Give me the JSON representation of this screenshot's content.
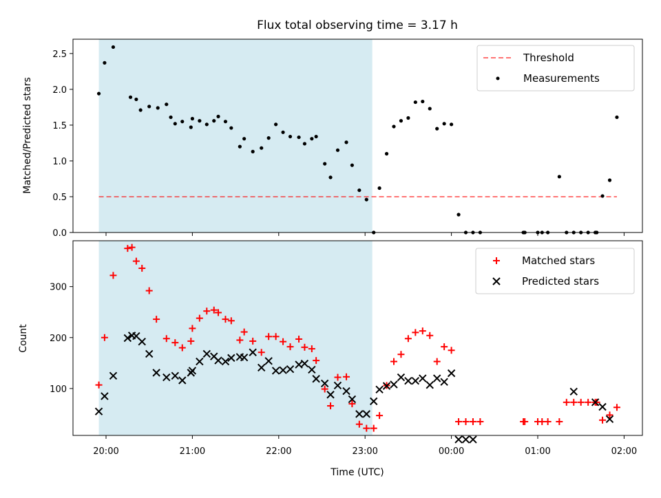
{
  "title": "Flux total observing time = 3.17 h",
  "colors": {
    "shade": "#add8e6",
    "threshold": "#ff0000",
    "measurement": "#000000",
    "matched": "#ff0000",
    "predicted": "#000000"
  },
  "chart_data": [
    {
      "type": "scatter",
      "ylabel": "Matched/Predicted stars",
      "ylim": [
        0,
        2.7
      ],
      "yticks": [
        0.0,
        0.5,
        1.0,
        1.5,
        2.0,
        2.5
      ],
      "ytick_labels": [
        "0.0",
        "0.5",
        "1.0",
        "1.5",
        "2.0",
        "2.5"
      ],
      "shaded_region": {
        "x_start": "19:55",
        "x_end": "23:05"
      },
      "threshold": {
        "value": 0.5,
        "x_start": "19:55",
        "x_end": "01:55"
      },
      "legend": [
        "Threshold",
        "Measurements"
      ],
      "legend_position": "top-right",
      "series": [
        {
          "name": "Measurements",
          "x": [
            "19:55",
            "19:59",
            "20:05",
            "20:17",
            "20:21",
            "20:24",
            "20:30",
            "20:36",
            "20:42",
            "20:45",
            "20:48",
            "20:53",
            "20:59",
            "21:00",
            "21:05",
            "21:10",
            "21:15",
            "21:18",
            "21:23",
            "21:27",
            "21:33",
            "21:36",
            "21:42",
            "21:48",
            "21:53",
            "21:58",
            "22:03",
            "22:08",
            "22:14",
            "22:18",
            "22:23",
            "22:26",
            "22:32",
            "22:36",
            "22:41",
            "22:47",
            "22:51",
            "22:56",
            "23:01",
            "23:06",
            "23:10",
            "23:15",
            "23:20",
            "23:25",
            "23:30",
            "23:35",
            "23:40",
            "23:45",
            "23:50",
            "23:55",
            "00:00",
            "00:05",
            "00:10",
            "00:15",
            "00:20",
            "00:50",
            "00:51",
            "01:00",
            "01:03",
            "01:07",
            "01:15",
            "01:20",
            "01:25",
            "01:30",
            "01:35",
            "01:40",
            "01:41",
            "01:45",
            "01:50",
            "01:55"
          ],
          "y": [
            1.94,
            2.37,
            2.59,
            1.89,
            1.86,
            1.71,
            1.76,
            1.74,
            1.79,
            1.61,
            1.52,
            1.55,
            1.47,
            1.59,
            1.56,
            1.51,
            1.56,
            1.62,
            1.55,
            1.46,
            1.2,
            1.31,
            1.13,
            1.18,
            1.32,
            1.51,
            1.4,
            1.34,
            1.33,
            1.24,
            1.31,
            1.34,
            0.96,
            0.77,
            1.15,
            1.26,
            0.94,
            0.59,
            0.46,
            0.0,
            0.62,
            1.1,
            1.48,
            1.56,
            1.6,
            1.82,
            1.83,
            1.73,
            1.45,
            1.52,
            1.51,
            0.25,
            0.0,
            0.0,
            0.0,
            0.0,
            0.0,
            0.0,
            0.0,
            0.0,
            0.78,
            0.0,
            0.0,
            0.0,
            0.0,
            0.0,
            0.0,
            0.51,
            0.73,
            1.61
          ]
        }
      ]
    },
    {
      "type": "scatter",
      "xlabel": "Time (UTC)",
      "ylabel": "Count",
      "ylim": [
        8,
        390
      ],
      "yticks": [
        100,
        200,
        300
      ],
      "ytick_labels": [
        "100",
        "200",
        "300"
      ],
      "xticks": [
        "20:00",
        "21:00",
        "22:00",
        "23:00",
        "00:00",
        "01:00",
        "02:00"
      ],
      "shaded_region": {
        "x_start": "19:55",
        "x_end": "23:05"
      },
      "legend": [
        "Matched stars",
        "Predicted stars"
      ],
      "legend_position": "top-right",
      "series": [
        {
          "name": "Matched stars",
          "x": [
            "19:55",
            "19:59",
            "20:05",
            "20:15",
            "20:18",
            "20:21",
            "20:25",
            "20:30",
            "20:35",
            "20:42",
            "20:48",
            "20:53",
            "20:59",
            "21:00",
            "21:05",
            "21:10",
            "21:15",
            "21:18",
            "21:23",
            "21:27",
            "21:33",
            "21:36",
            "21:42",
            "21:48",
            "21:53",
            "21:58",
            "22:03",
            "22:08",
            "22:14",
            "22:18",
            "22:23",
            "22:26",
            "22:32",
            "22:36",
            "22:41",
            "22:47",
            "22:51",
            "22:56",
            "23:01",
            "23:06",
            "23:10",
            "23:15",
            "23:20",
            "23:25",
            "23:30",
            "23:35",
            "23:40",
            "23:45",
            "23:50",
            "23:55",
            "00:00",
            "00:05",
            "00:10",
            "00:15",
            "00:20",
            "00:50",
            "00:51",
            "01:00",
            "01:03",
            "01:07",
            "01:15",
            "01:20",
            "01:25",
            "01:30",
            "01:35",
            "01:40",
            "01:41",
            "01:45",
            "01:50",
            "01:55"
          ],
          "y": [
            107,
            200,
            322,
            375,
            377,
            350,
            336,
            292,
            236,
            198,
            190,
            180,
            193,
            218,
            238,
            252,
            254,
            249,
            236,
            233,
            195,
            211,
            193,
            171,
            202,
            202,
            192,
            182,
            197,
            181,
            178,
            155,
            99,
            66,
            122,
            123,
            70,
            30,
            22,
            22,
            47,
            106,
            153,
            167,
            198,
            210,
            213,
            204,
            153,
            182,
            175,
            35,
            35,
            35,
            35,
            35,
            35,
            35,
            35,
            35,
            35,
            73,
            73,
            73,
            73,
            73,
            73,
            38,
            48,
            63
          ]
        },
        {
          "name": "Predicted stars",
          "x": [
            "19:55",
            "19:59",
            "20:05",
            "20:15",
            "20:18",
            "20:21",
            "20:25",
            "20:30",
            "20:35",
            "20:42",
            "20:48",
            "20:53",
            "20:59",
            "21:00",
            "21:05",
            "21:10",
            "21:15",
            "21:18",
            "21:23",
            "21:27",
            "21:33",
            "21:36",
            "21:42",
            "21:48",
            "21:53",
            "21:58",
            "22:03",
            "22:08",
            "22:14",
            "22:18",
            "22:23",
            "22:26",
            "22:32",
            "22:36",
            "22:41",
            "22:47",
            "22:51",
            "22:56",
            "23:01",
            "23:06",
            "23:10",
            "23:15",
            "23:20",
            "23:25",
            "23:30",
            "23:35",
            "23:40",
            "23:45",
            "23:50",
            "23:55",
            "00:00",
            "00:05",
            "00:10",
            "00:15",
            "01:25",
            "01:40",
            "01:45",
            "01:50"
          ],
          "y": [
            55,
            85,
            125,
            199,
            204,
            203,
            192,
            168,
            131,
            122,
            125,
            116,
            131,
            135,
            153,
            168,
            163,
            155,
            153,
            160,
            162,
            161,
            171,
            141,
            154,
            135,
            136,
            138,
            147,
            149,
            137,
            119,
            110,
            88,
            106,
            95,
            79,
            50,
            50,
            75,
            98,
            105,
            108,
            122,
            115,
            115,
            120,
            107,
            120,
            113,
            130,
            0,
            0,
            0,
            94,
            73,
            64,
            40
          ]
        }
      ]
    }
  ]
}
